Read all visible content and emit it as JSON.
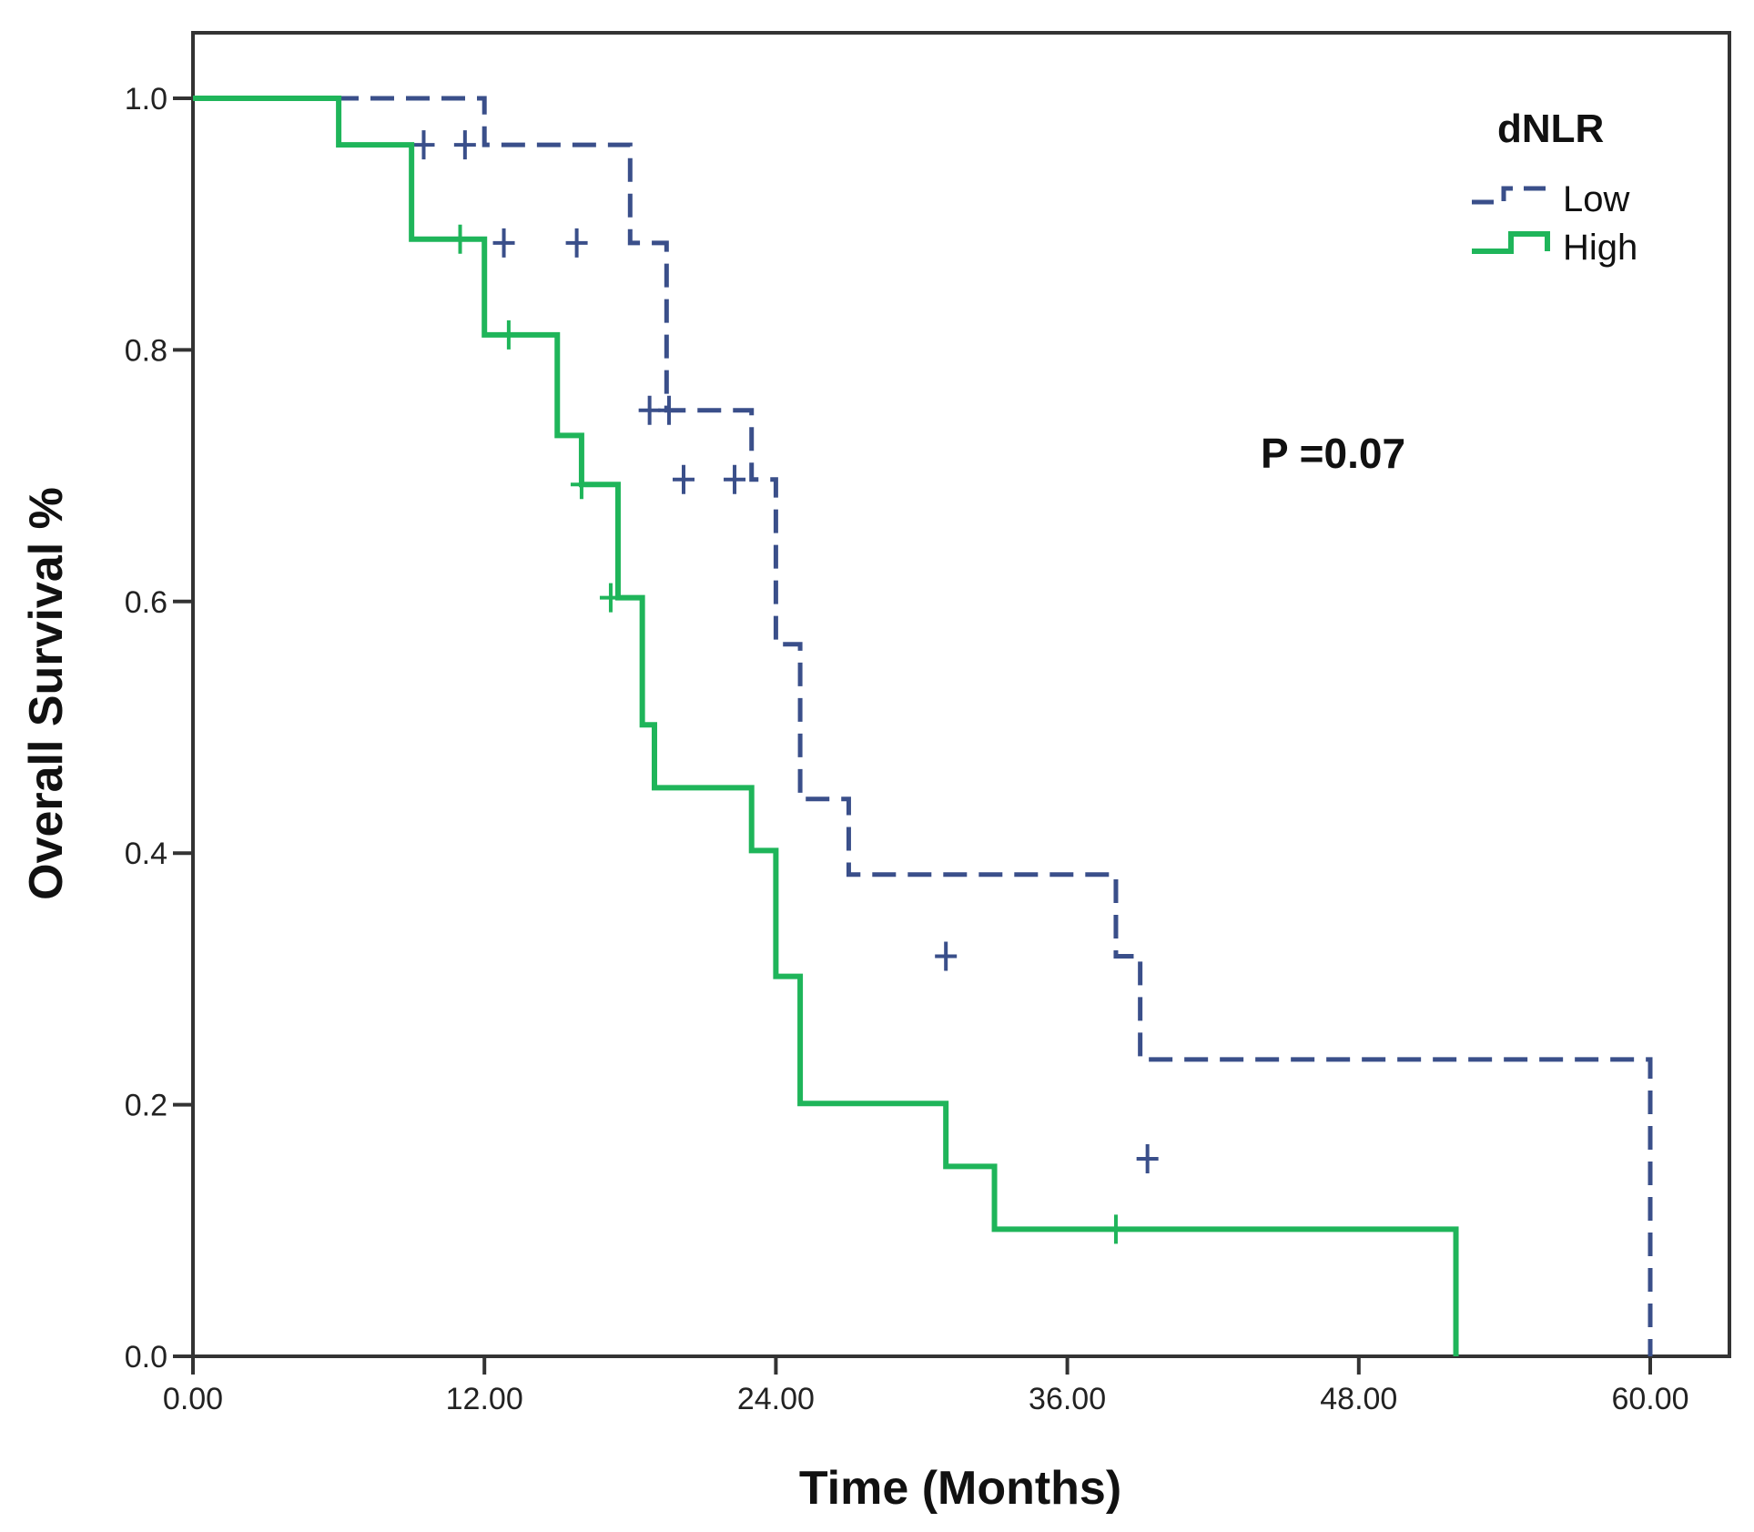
{
  "chart_data": {
    "type": "line",
    "subtype": "kaplan-meier step plot",
    "title": "",
    "xlabel": "Time (Months)",
    "ylabel": "Overall Survival %",
    "xlim": [
      0,
      60
    ],
    "ylim": [
      0,
      1.0
    ],
    "x_ticks": [
      "0.00",
      "12.00",
      "24.00",
      "36.00",
      "48.00",
      "60.00"
    ],
    "x_tick_values": [
      0,
      12,
      24,
      36,
      48,
      60
    ],
    "y_ticks": [
      "0.0",
      "0.2",
      "0.4",
      "0.6",
      "0.8",
      "1.0"
    ],
    "y_tick_values": [
      0,
      0.2,
      0.4,
      0.6,
      0.8,
      1.0
    ],
    "grid": false,
    "legend": {
      "title": "dNLR",
      "position": "top-right"
    },
    "annotation": "P =0.07",
    "series": [
      {
        "name": "Low",
        "color": "#3a4f8a",
        "style": "dashed",
        "steps": [
          [
            0,
            1.0
          ],
          [
            12,
            0.963
          ],
          [
            18,
            0.885
          ],
          [
            19.5,
            0.752
          ],
          [
            23,
            0.697
          ],
          [
            24,
            0.566
          ],
          [
            25,
            0.443
          ],
          [
            27,
            0.383
          ],
          [
            38,
            0.318
          ],
          [
            39,
            0.236
          ],
          [
            60,
            0.157
          ]
        ],
        "end": [
          60,
          0.0
        ],
        "censored": [
          [
            9.5,
            0.963
          ],
          [
            11.2,
            0.963
          ],
          [
            12.8,
            0.885
          ],
          [
            15.8,
            0.885
          ],
          [
            18.8,
            0.752
          ],
          [
            19.6,
            0.752
          ],
          [
            20.2,
            0.697
          ],
          [
            22.3,
            0.697
          ],
          [
            31,
            0.318
          ],
          [
            39.3,
            0.157
          ]
        ]
      },
      {
        "name": "High",
        "color": "#1fb55a",
        "style": "solid",
        "steps": [
          [
            0,
            1.0
          ],
          [
            6,
            0.963
          ],
          [
            9,
            0.888
          ],
          [
            12,
            0.812
          ],
          [
            15,
            0.732
          ],
          [
            16,
            0.693
          ],
          [
            17.5,
            0.603
          ],
          [
            18.5,
            0.502
          ],
          [
            19,
            0.452
          ],
          [
            23,
            0.402
          ],
          [
            24,
            0.302
          ],
          [
            25,
            0.201
          ],
          [
            31,
            0.151
          ],
          [
            33,
            0.101
          ],
          [
            52,
            0.0
          ]
        ],
        "censored": [
          [
            11,
            0.888
          ],
          [
            13,
            0.812
          ],
          [
            16,
            0.693
          ],
          [
            17.2,
            0.603
          ],
          [
            38,
            0.101
          ]
        ]
      }
    ]
  }
}
